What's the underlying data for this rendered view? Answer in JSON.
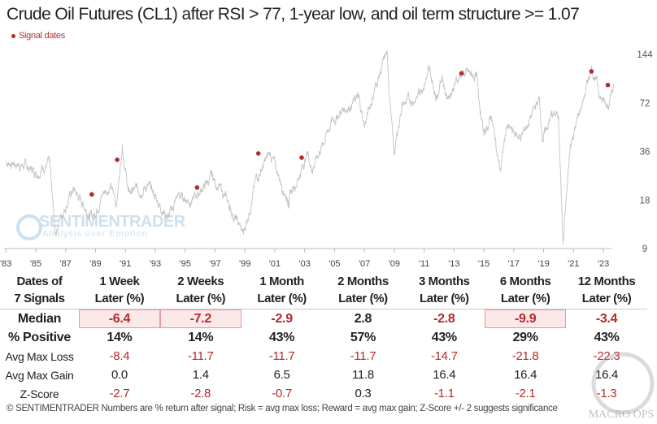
{
  "title": "Crude Oil Futures (CL1) after RSI > 77, 1-year low, and oil term structure >= 1.07",
  "legend_label": "Signal dates",
  "watermark": {
    "brand": "SENTIMENTRADER",
    "tagline": "Analysis over Emotion",
    "corner_logo": "MACRO OPS"
  },
  "colors": {
    "price_line": "#c4c4c4",
    "signal": "#b52a2a",
    "negative": "#b52a2a",
    "highlight_fill": "#fbe8e8",
    "highlight_border": "#e59c9c"
  },
  "chart_data": {
    "type": "line",
    "title": "Crude Oil Futures (CL1) after RSI > 77, 1-year low, and oil term structure >= 1.07",
    "y_scale": "log",
    "ylim": [
      9,
      144
    ],
    "y_ticks": [
      "9",
      "18",
      "36",
      "72",
      "144"
    ],
    "x_ticks": [
      "'83",
      "'85",
      "'87",
      "'89",
      "'91",
      "'93",
      "'95",
      "'97",
      "'99",
      "'01",
      "'03",
      "'05",
      "'07",
      "'09",
      "'11",
      "'13",
      "'15",
      "'17",
      "'19",
      "'21",
      "'23"
    ],
    "grid": false,
    "legend_position": "top-left",
    "series": [
      {
        "points": [
          [
            1983.0,
            31
          ],
          [
            1984.0,
            30
          ],
          [
            1985.0,
            27
          ],
          [
            1985.9,
            31
          ],
          [
            1986.3,
            11
          ],
          [
            1986.6,
            14
          ],
          [
            1987.5,
            21
          ],
          [
            1988.8,
            14
          ],
          [
            1989.5,
            20
          ],
          [
            1990.0,
            22
          ],
          [
            1990.4,
            17
          ],
          [
            1990.8,
            40
          ],
          [
            1991.2,
            20
          ],
          [
            1992.5,
            22
          ],
          [
            1993.9,
            14
          ],
          [
            1994.5,
            19
          ],
          [
            1995.5,
            18
          ],
          [
            1996.8,
            25
          ],
          [
            1997.5,
            20
          ],
          [
            1998.9,
            11
          ],
          [
            1999.8,
            25
          ],
          [
            2000.7,
            35
          ],
          [
            2001.9,
            18
          ],
          [
            2002.8,
            28
          ],
          [
            2003.2,
            36
          ],
          [
            2003.5,
            28
          ],
          [
            2004.8,
            55
          ],
          [
            2005.5,
            65
          ],
          [
            2006.6,
            77
          ],
          [
            2007.0,
            52
          ],
          [
            2007.8,
            95
          ],
          [
            2008.5,
            145
          ],
          [
            2008.98,
            34
          ],
          [
            2009.5,
            70
          ],
          [
            2010.5,
            78
          ],
          [
            2011.3,
            113
          ],
          [
            2011.8,
            80
          ],
          [
            2012.2,
            108
          ],
          [
            2012.5,
            78
          ],
          [
            2013.5,
            110
          ],
          [
            2014.5,
            105
          ],
          [
            2015.0,
            45
          ],
          [
            2015.5,
            60
          ],
          [
            2016.1,
            27
          ],
          [
            2016.5,
            50
          ],
          [
            2017.5,
            44
          ],
          [
            2018.7,
            76
          ],
          [
            2018.95,
            43
          ],
          [
            2019.5,
            60
          ],
          [
            2020.0,
            60
          ],
          [
            2020.3,
            9.5
          ],
          [
            2020.8,
            40
          ],
          [
            2021.8,
            84
          ],
          [
            2022.2,
            122
          ],
          [
            2022.5,
            100
          ],
          [
            2022.9,
            75
          ],
          [
            2023.2,
            70
          ],
          [
            2023.7,
            93
          ]
        ]
      }
    ],
    "signals": [
      [
        1988.75,
        19.5
      ],
      [
        1990.45,
        32
      ],
      [
        1995.8,
        21.5
      ],
      [
        1999.9,
        35
      ],
      [
        2002.8,
        33
      ],
      [
        2013.5,
        110
      ],
      [
        2022.2,
        113
      ],
      [
        2023.3,
        93
      ]
    ]
  },
  "table": {
    "corner": [
      "Dates of",
      "7 Signals"
    ],
    "columns": [
      [
        "1 Week",
        "Later (%)"
      ],
      [
        "2 Weeks",
        "Later (%)"
      ],
      [
        "1 Month",
        "Later (%)"
      ],
      [
        "2 Months",
        "Later (%)"
      ],
      [
        "3 Months",
        "Later (%)"
      ],
      [
        "6 Months",
        "Later (%)"
      ],
      [
        "12 Months",
        "Later (%)"
      ]
    ],
    "rows": [
      {
        "label": "Median",
        "values": [
          "-6.4",
          "-7.2",
          "-2.9",
          "2.8",
          "-2.8",
          "-9.9",
          "-3.4"
        ],
        "highlighted": [
          true,
          true,
          false,
          false,
          false,
          true,
          false
        ]
      },
      {
        "label": "% Positive",
        "values": [
          "14%",
          "14%",
          "43%",
          "57%",
          "43%",
          "29%",
          "43%"
        ]
      },
      {
        "label": "Avg Max Loss",
        "values": [
          "-8.4",
          "-11.7",
          "-11.7",
          "-11.7",
          "-14.7",
          "-21.8",
          "-22.3"
        ]
      },
      {
        "label": "Avg Max Gain",
        "values": [
          "0.0",
          "1.4",
          "6.5",
          "11.8",
          "16.4",
          "16.4",
          "16.4"
        ]
      },
      {
        "label": "Z-Score",
        "values": [
          "-2.7",
          "-2.8",
          "-0.7",
          "0.3",
          "-1.1",
          "-2.1",
          "-1.3"
        ]
      }
    ]
  },
  "footer": "© SENTIMENTRADER  Numbers are % return after signal; Risk = avg max loss; Reward = avg max gain; Z-Score +/- 2 suggests significance"
}
